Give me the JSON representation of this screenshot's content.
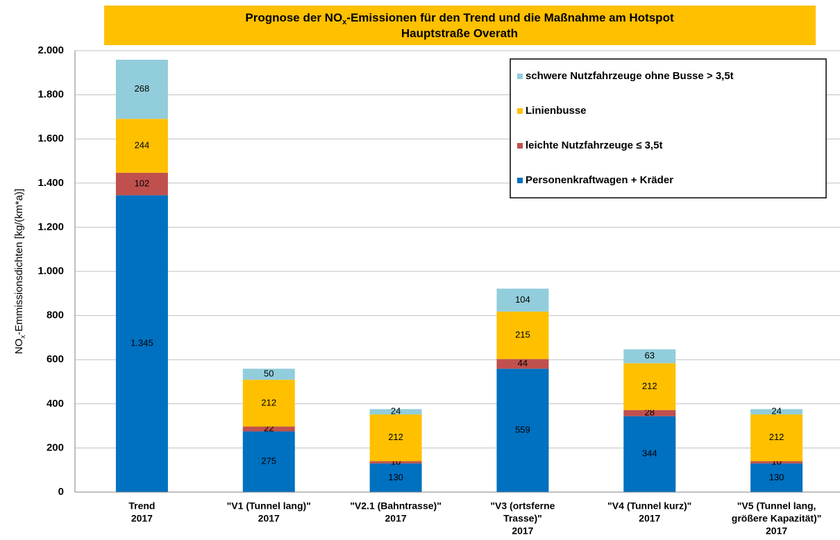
{
  "chart_data": {
    "type": "stacked_bar",
    "title": [
      "Prognose der NO",
      "x",
      "-Emissionen für den Trend und die Maßnahme  am Hotspot",
      "Hauptstraße Overath"
    ],
    "y_label": [
      "NO",
      "x",
      "-Emmissionsdichten [kg/(km*a)]"
    ],
    "categories": [
      [
        "Trend",
        "2017"
      ],
      [
        "\"V1 (Tunnel lang)\"",
        "2017"
      ],
      [
        "\"V2.1 (Bahntrasse)\"",
        "2017"
      ],
      [
        "\"V3 (ortsferne",
        "Trasse)\"",
        "2017"
      ],
      [
        "\"V4 (Tunnel kurz)\"",
        "2017"
      ],
      [
        "\"V5 (Tunnel lang,",
        "größere Kapazität)\"",
        "2017"
      ]
    ],
    "series": [
      {
        "name": "Personenkraftwagen + Kräder",
        "color": "#0070c0",
        "values": [
          1345,
          275,
          130,
          559,
          344,
          130
        ],
        "value_labels": [
          "1.345",
          "275",
          "130",
          "559",
          "344",
          "130"
        ]
      },
      {
        "name": "leichte Nutzfahrzeuge ≤ 3,5t",
        "color": "#c0504d",
        "values": [
          102,
          22,
          10,
          44,
          28,
          10
        ]
      },
      {
        "name": "Linienbusse",
        "color": "#ffc000",
        "values": [
          244,
          212,
          212,
          215,
          212,
          212
        ]
      },
      {
        "name": "schwere Nutzfahrzeuge ohne Busse > 3,5t",
        "color": "#92cddc",
        "values": [
          268,
          50,
          24,
          104,
          63,
          24
        ]
      }
    ],
    "ylim": [
      0,
      2000
    ],
    "yticks": [
      0,
      200,
      400,
      600,
      800,
      {
        "value": 1000,
        "label": "1.000"
      },
      {
        "value": 1200,
        "label": "1.200"
      },
      {
        "value": 1400,
        "label": "1.400"
      },
      {
        "value": 1600,
        "label": "1.600"
      },
      {
        "value": 1800,
        "label": "1.800"
      },
      {
        "value": 2000,
        "label": "2.000"
      }
    ],
    "grid": true,
    "legend": "upper right",
    "title_color": "#ffc000"
  }
}
